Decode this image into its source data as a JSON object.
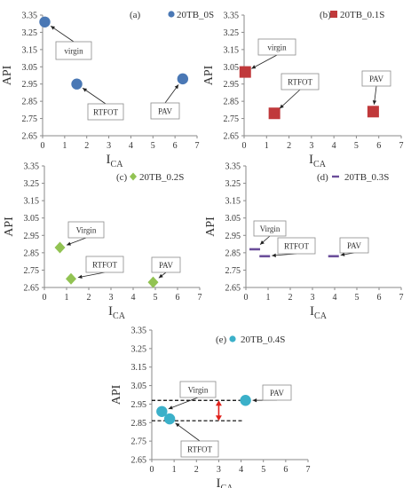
{
  "chart_data": [
    {
      "id": "a",
      "type": "scatter",
      "panel_label": "(a)",
      "marker": "circle",
      "color": "#4a78b5",
      "xlabel_main": "I",
      "xlabel_sub": "CA",
      "ylabel": "API",
      "xlim": [
        0,
        7
      ],
      "ylim": [
        2.65,
        3.35
      ],
      "x_ticks": [
        "0",
        "1",
        "2",
        "3",
        "4",
        "5",
        "6",
        "7"
      ],
      "y_ticks": [
        "2.65",
        "2.75",
        "2.85",
        "2.95",
        "3.05",
        "3.15",
        "3.25",
        "3.35"
      ],
      "legend": "20TB_0S",
      "points": [
        {
          "label": "virgin",
          "x": 0.1,
          "y": 3.31
        },
        {
          "label": "RTFOT",
          "x": 1.55,
          "y": 2.95
        },
        {
          "label": "PAV",
          "x": 6.35,
          "y": 2.98
        }
      ]
    },
    {
      "id": "b",
      "type": "scatter",
      "panel_label": "(b)",
      "marker": "square",
      "color": "#c0393b",
      "xlabel_main": "I",
      "xlabel_sub": "CA",
      "ylabel": "API",
      "xlim": [
        0,
        7
      ],
      "ylim": [
        2.65,
        3.35
      ],
      "x_ticks": [
        "0",
        "1",
        "2",
        "3",
        "4",
        "5",
        "6",
        "7"
      ],
      "y_ticks": [
        "2.65",
        "2.75",
        "2.85",
        "2.95",
        "3.05",
        "3.15",
        "3.25",
        "3.35"
      ],
      "legend": "20TB_0.1S",
      "points": [
        {
          "label": "virgin",
          "x": 0.05,
          "y": 3.02
        },
        {
          "label": "RTFOT",
          "x": 1.35,
          "y": 2.78
        },
        {
          "label": "PAV",
          "x": 5.75,
          "y": 2.79
        }
      ]
    },
    {
      "id": "c",
      "type": "scatter",
      "panel_label": "(c)",
      "marker": "diamond",
      "color": "#92c353",
      "xlabel_main": "I",
      "xlabel_sub": "CA",
      "ylabel": "API",
      "xlim": [
        0,
        7
      ],
      "ylim": [
        2.65,
        3.35
      ],
      "x_ticks": [
        "0",
        "1",
        "2",
        "3",
        "4",
        "5",
        "6",
        "7"
      ],
      "y_ticks": [
        "2.65",
        "2.75",
        "2.85",
        "2.95",
        "3.05",
        "3.15",
        "3.25",
        "3.35"
      ],
      "legend": "20TB_0.2S",
      "points": [
        {
          "label": "Virgin",
          "x": 0.7,
          "y": 2.88
        },
        {
          "label": "RTFOT",
          "x": 1.2,
          "y": 2.7
        },
        {
          "label": "PAV",
          "x": 4.9,
          "y": 2.68
        }
      ]
    },
    {
      "id": "d",
      "type": "scatter",
      "panel_label": "(d)",
      "marker": "dash",
      "color": "#6b4e9a",
      "xlabel_main": "I",
      "xlabel_sub": "CA",
      "ylabel": "API",
      "xlim": [
        0,
        7
      ],
      "ylim": [
        2.65,
        3.35
      ],
      "x_ticks": [
        "0",
        "1",
        "2",
        "3",
        "4",
        "5",
        "6",
        "7"
      ],
      "y_ticks": [
        "2.65",
        "2.75",
        "2.85",
        "2.95",
        "3.05",
        "3.15",
        "3.25",
        "3.35"
      ],
      "legend": "20TB_0.3S",
      "points": [
        {
          "label": "Virgin",
          "x": 0.4,
          "y": 2.87
        },
        {
          "label": "RTFOT",
          "x": 0.85,
          "y": 2.83
        },
        {
          "label": "PAV",
          "x": 3.95,
          "y": 2.83
        }
      ]
    },
    {
      "id": "e",
      "type": "scatter",
      "panel_label": "(e)",
      "marker": "circle",
      "color": "#3bb0c9",
      "xlabel_main": "I",
      "xlabel_sub": "CA",
      "ylabel": "API",
      "xlim": [
        0,
        7
      ],
      "ylim": [
        2.65,
        3.35
      ],
      "x_ticks": [
        "0",
        "1",
        "2",
        "3",
        "4",
        "5",
        "6",
        "7"
      ],
      "y_ticks": [
        "2.65",
        "2.75",
        "2.85",
        "2.95",
        "3.05",
        "3.15",
        "3.25",
        "3.35"
      ],
      "legend": "20TB_0.4S",
      "points": [
        {
          "label": "Virgin",
          "x": 0.45,
          "y": 2.91
        },
        {
          "label": "RTFOT",
          "x": 0.8,
          "y": 2.87
        },
        {
          "label": "PAV",
          "x": 4.2,
          "y": 2.97
        }
      ],
      "reference_lines_y": [
        2.97,
        2.86
      ],
      "range_arrow": {
        "x": 3.0,
        "y_from": 2.86,
        "y_to": 2.97,
        "color": "#e0201b"
      }
    }
  ]
}
